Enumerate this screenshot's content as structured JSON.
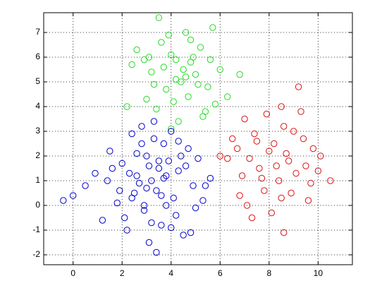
{
  "chart_data": {
    "type": "scatter",
    "grid": true,
    "xlim": [
      -1.2,
      11.4
    ],
    "ylim": [
      -2.4,
      7.8
    ],
    "xticks": [
      0,
      2,
      4,
      6,
      8,
      10
    ],
    "yticks": [
      -2,
      -1,
      0,
      1,
      2,
      3,
      4,
      5,
      6,
      7
    ],
    "series": [
      {
        "color": "#22dd22",
        "x": [
          3.5,
          4.6,
          2.6,
          5.7,
          4.0,
          4.8,
          3.2,
          5.2,
          4.4,
          3.8,
          5.0,
          4.2,
          6.0,
          2.9,
          4.7,
          3.6,
          5.5,
          4.1,
          4.9,
          3.3,
          5.8,
          4.5,
          3.0,
          5.3,
          4.3,
          2.4,
          6.3,
          3.9,
          5.1,
          4.6,
          3.4,
          4.0,
          5.6,
          2.2,
          4.8,
          3.7,
          5.4,
          4.2,
          6.8,
          3.1
        ],
        "values": [
          7.6,
          7.0,
          6.3,
          7.2,
          6.1,
          5.8,
          5.4,
          6.4,
          5.0,
          4.7,
          5.3,
          5.9,
          5.5,
          5.9,
          4.4,
          6.6,
          4.8,
          4.2,
          6.0,
          4.9,
          4.1,
          5.5,
          4.3,
          3.6,
          3.4,
          5.7,
          4.4,
          6.9,
          4.9,
          5.2,
          3.9,
          3.1,
          5.9,
          4.0,
          6.7,
          5.6,
          3.8,
          5.1,
          5.3,
          6.0
        ]
      },
      {
        "color": "#dd1111",
        "x": [
          7.0,
          7.9,
          8.6,
          9.3,
          6.5,
          7.4,
          8.2,
          9.0,
          9.8,
          10.1,
          7.2,
          8.0,
          8.8,
          9.5,
          6.9,
          7.6,
          8.4,
          9.1,
          10.5,
          6.3,
          7.8,
          8.5,
          9.7,
          7.1,
          8.1,
          8.9,
          6.7,
          7.5,
          8.3,
          9.4,
          8.6,
          7.3,
          9.2,
          10.0,
          6.8,
          8.7,
          7.7,
          9.6,
          6.0,
          8.5
        ],
        "values": [
          3.5,
          3.7,
          3.2,
          3.8,
          2.7,
          2.9,
          2.5,
          3.0,
          2.3,
          2.0,
          1.9,
          2.2,
          1.8,
          1.6,
          1.2,
          1.5,
          1.0,
          1.3,
          1.0,
          1.9,
          0.6,
          0.3,
          0.9,
          0.0,
          -0.3,
          0.5,
          2.3,
          2.6,
          1.6,
          2.7,
          -1.1,
          -0.5,
          4.8,
          1.4,
          0.4,
          2.1,
          1.1,
          0.2,
          2.0,
          4.0
        ]
      },
      {
        "color": "#0000cc",
        "x": [
          -0.4,
          0.0,
          0.5,
          0.9,
          1.2,
          1.5,
          1.8,
          2.0,
          2.2,
          2.4,
          2.5,
          2.6,
          2.8,
          2.9,
          3.0,
          3.1,
          3.2,
          3.3,
          3.4,
          3.5,
          3.6,
          3.7,
          3.8,
          3.9,
          4.0,
          4.1,
          4.3,
          4.5,
          4.7,
          4.9,
          5.1,
          5.3,
          5.6,
          2.1,
          2.7,
          3.3,
          3.6,
          4.2,
          1.6,
          2.3,
          3.0,
          3.8,
          4.4,
          5.0,
          2.6,
          3.4,
          1.9,
          4.6,
          3.1,
          2.8,
          3.5,
          4.0,
          1.4,
          5.4,
          2.9,
          3.7,
          4.8,
          2.4,
          3.2,
          4.3
        ],
        "values": [
          0.2,
          0.4,
          0.8,
          1.3,
          -0.6,
          2.2,
          0.1,
          1.7,
          -1.0,
          2.9,
          0.5,
          1.2,
          3.2,
          -0.2,
          2.0,
          -1.5,
          1.0,
          3.4,
          0.6,
          1.5,
          -0.8,
          2.5,
          0.0,
          1.8,
          3.0,
          0.3,
          1.4,
          -1.2,
          2.3,
          0.8,
          1.9,
          0.2,
          1.1,
          -0.5,
          0.9,
          2.7,
          0.4,
          -0.4,
          1.5,
          1.3,
          0.7,
          1.2,
          2.0,
          -0.1,
          2.1,
          -1.9,
          0.6,
          1.6,
          1.6,
          2.5,
          1.8,
          -0.9,
          1.0,
          0.8,
          0.0,
          1.1,
          -1.1,
          0.3,
          -0.7,
          2.6
        ]
      }
    ]
  }
}
